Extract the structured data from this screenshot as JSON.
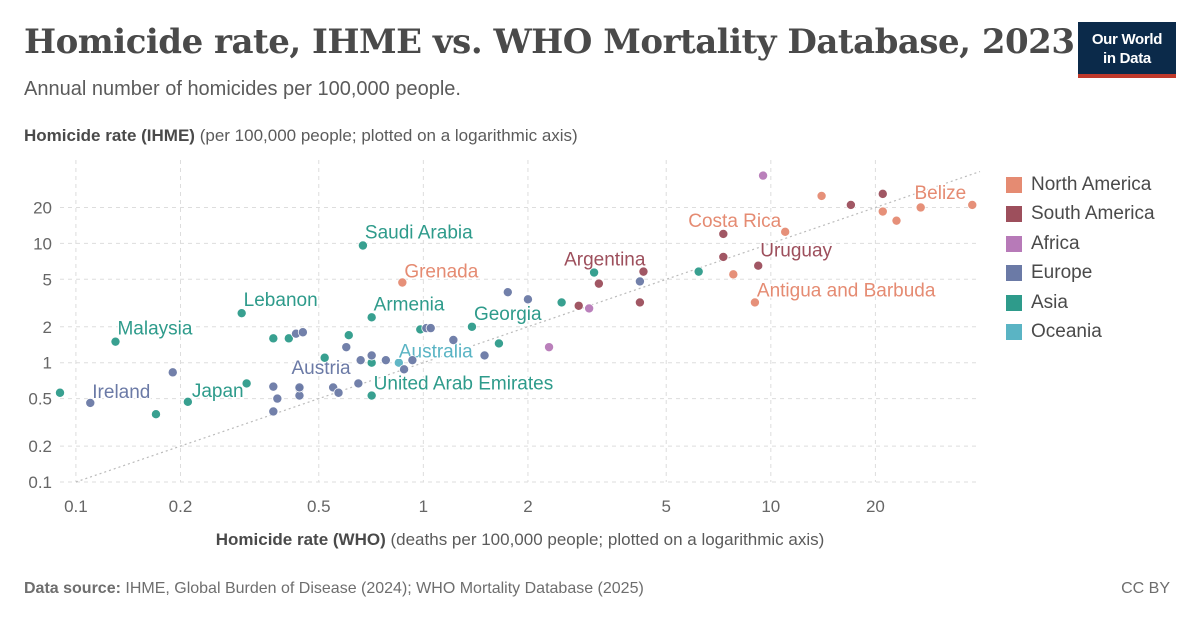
{
  "header": {
    "title": "Homicide rate, IHME vs. WHO Mortality Database, 2023",
    "subtitle": "Annual number of homicides per 100,000 people.",
    "logo_line1": "Our World",
    "logo_line2": "in Data"
  },
  "axes": {
    "y_label_bold": "Homicide rate (IHME)",
    "y_label_rest": " (per 100,000 people; plotted on a logarithmic axis)",
    "x_label_bold": "Homicide rate (WHO)",
    "x_label_rest": " (deaths per 100,000 people; plotted on a logarithmic axis)"
  },
  "footer": {
    "source_label": "Data source:",
    "source_text": " IHME, Global Burden of Disease (2024); WHO Mortality Database (2025)",
    "license": "CC BY"
  },
  "colors": {
    "North America": "#e58b72",
    "South America": "#9d4f5c",
    "Africa": "#b77ab8",
    "Europe": "#6b7aa6",
    "Asia": "#2e9b8b",
    "Oceania": "#5ab4c4",
    "grid": "#dddddd",
    "diagonal": "#bbbbbb"
  },
  "chart_data": {
    "type": "scatter",
    "x_scale": "log",
    "y_scale": "log",
    "xlim": [
      0.09,
      40
    ],
    "ylim": [
      0.1,
      50
    ],
    "x_ticks": [
      {
        "v": 0.1,
        "label": "0.1"
      },
      {
        "v": 0.2,
        "label": "0.2"
      },
      {
        "v": 0.5,
        "label": "0.5"
      },
      {
        "v": 1,
        "label": "1"
      },
      {
        "v": 2,
        "label": "2"
      },
      {
        "v": 5,
        "label": "5"
      },
      {
        "v": 10,
        "label": "10"
      },
      {
        "v": 20,
        "label": "20"
      }
    ],
    "y_ticks": [
      {
        "v": 0.1,
        "label": "0.1"
      },
      {
        "v": 0.2,
        "label": "0.2"
      },
      {
        "v": 0.5,
        "label": "0.5"
      },
      {
        "v": 1,
        "label": "1"
      },
      {
        "v": 2,
        "label": "2"
      },
      {
        "v": 5,
        "label": "5"
      },
      {
        "v": 10,
        "label": "10"
      },
      {
        "v": 20,
        "label": "20"
      }
    ],
    "reference_line": "y = x",
    "grid": true,
    "legend_position": "right",
    "legend": [
      "North America",
      "South America",
      "Africa",
      "Europe",
      "Asia",
      "Oceania"
    ],
    "points": [
      {
        "x": 38,
        "y": 21,
        "region": "North America",
        "label": "Belize"
      },
      {
        "x": 11,
        "y": 12.5,
        "region": "North America",
        "label": "Costa Rica"
      },
      {
        "x": 9.2,
        "y": 6.5,
        "region": "South America",
        "label": "Uruguay"
      },
      {
        "x": 4.3,
        "y": 5.8,
        "region": "South America",
        "label": "Argentina"
      },
      {
        "x": 9,
        "y": 3.2,
        "region": "North America",
        "label": "Antigua and Barbuda"
      },
      {
        "x": 0.87,
        "y": 4.7,
        "region": "North America",
        "label": "Grenada"
      },
      {
        "x": 0.67,
        "y": 9.6,
        "region": "Asia",
        "label": "Saudi Arabia"
      },
      {
        "x": 0.3,
        "y": 2.6,
        "region": "Asia",
        "label": "Lebanon"
      },
      {
        "x": 0.71,
        "y": 2.4,
        "region": "Asia",
        "label": "Armenia"
      },
      {
        "x": 1.38,
        "y": 2.0,
        "region": "Asia",
        "label": "Georgia"
      },
      {
        "x": 0.13,
        "y": 1.5,
        "region": "Asia",
        "label": "Malaysia"
      },
      {
        "x": 0.85,
        "y": 1.0,
        "region": "Oceania",
        "label": "Australia"
      },
      {
        "x": 0.71,
        "y": 0.53,
        "region": "Asia",
        "label": "United Arab Emirates"
      },
      {
        "x": 0.44,
        "y": 0.6,
        "region": "Europe",
        "label": "Austria"
      },
      {
        "x": 0.11,
        "y": 0.46,
        "region": "Europe",
        "label": "Ireland"
      },
      {
        "x": 0.21,
        "y": 0.47,
        "region": "Asia",
        "label": "Japan"
      },
      {
        "x": 0.09,
        "y": 0.56,
        "region": "Asia"
      },
      {
        "x": 0.17,
        "y": 0.37,
        "region": "Asia"
      },
      {
        "x": 0.19,
        "y": 0.83,
        "region": "Europe"
      },
      {
        "x": 0.31,
        "y": 0.67,
        "region": "Asia"
      },
      {
        "x": 0.37,
        "y": 0.63,
        "region": "Europe"
      },
      {
        "x": 0.38,
        "y": 0.5,
        "region": "Europe"
      },
      {
        "x": 0.37,
        "y": 0.39,
        "region": "Europe"
      },
      {
        "x": 0.44,
        "y": 0.53,
        "region": "Europe"
      },
      {
        "x": 0.44,
        "y": 0.62,
        "region": "Europe"
      },
      {
        "x": 0.37,
        "y": 1.6,
        "region": "Asia"
      },
      {
        "x": 0.41,
        "y": 1.6,
        "region": "Asia"
      },
      {
        "x": 0.43,
        "y": 1.75,
        "region": "Europe"
      },
      {
        "x": 0.45,
        "y": 1.8,
        "region": "Europe"
      },
      {
        "x": 0.52,
        "y": 1.1,
        "region": "Asia"
      },
      {
        "x": 0.55,
        "y": 0.62,
        "region": "Europe"
      },
      {
        "x": 0.57,
        "y": 0.56,
        "region": "Europe"
      },
      {
        "x": 0.6,
        "y": 1.35,
        "region": "Europe"
      },
      {
        "x": 0.61,
        "y": 1.7,
        "region": "Asia"
      },
      {
        "x": 0.65,
        "y": 0.67,
        "region": "Europe"
      },
      {
        "x": 0.66,
        "y": 1.05,
        "region": "Europe"
      },
      {
        "x": 0.71,
        "y": 1.0,
        "region": "Asia"
      },
      {
        "x": 0.71,
        "y": 1.15,
        "region": "Europe"
      },
      {
        "x": 0.78,
        "y": 1.05,
        "region": "Europe"
      },
      {
        "x": 0.88,
        "y": 0.88,
        "region": "Europe"
      },
      {
        "x": 0.93,
        "y": 1.05,
        "region": "Europe"
      },
      {
        "x": 0.98,
        "y": 1.9,
        "region": "Asia"
      },
      {
        "x": 1.02,
        "y": 1.95,
        "region": "Europe"
      },
      {
        "x": 1.05,
        "y": 1.95,
        "region": "Europe"
      },
      {
        "x": 1.22,
        "y": 1.55,
        "region": "Europe"
      },
      {
        "x": 1.5,
        "y": 1.15,
        "region": "Europe"
      },
      {
        "x": 1.65,
        "y": 1.45,
        "region": "Asia"
      },
      {
        "x": 1.75,
        "y": 3.9,
        "region": "Europe"
      },
      {
        "x": 2.0,
        "y": 3.4,
        "region": "Europe"
      },
      {
        "x": 2.3,
        "y": 1.35,
        "region": "Africa"
      },
      {
        "x": 2.5,
        "y": 3.2,
        "region": "Asia"
      },
      {
        "x": 2.8,
        "y": 3.0,
        "region": "South America"
      },
      {
        "x": 3.0,
        "y": 2.85,
        "region": "Africa"
      },
      {
        "x": 3.1,
        "y": 5.7,
        "region": "Asia"
      },
      {
        "x": 3.2,
        "y": 4.6,
        "region": "South America"
      },
      {
        "x": 4.2,
        "y": 3.2,
        "region": "South America"
      },
      {
        "x": 4.2,
        "y": 4.8,
        "region": "Europe"
      },
      {
        "x": 6.2,
        "y": 5.8,
        "region": "Asia"
      },
      {
        "x": 7.3,
        "y": 12,
        "region": "South America"
      },
      {
        "x": 7.3,
        "y": 7.7,
        "region": "South America"
      },
      {
        "x": 7.8,
        "y": 5.5,
        "region": "North America"
      },
      {
        "x": 9.5,
        "y": 37,
        "region": "Africa"
      },
      {
        "x": 14,
        "y": 25,
        "region": "North America"
      },
      {
        "x": 17,
        "y": 21,
        "region": "South America"
      },
      {
        "x": 21,
        "y": 26,
        "region": "South America"
      },
      {
        "x": 21,
        "y": 18.5,
        "region": "North America"
      },
      {
        "x": 23,
        "y": 15.5,
        "region": "North America"
      },
      {
        "x": 27,
        "y": 20,
        "region": "North America"
      }
    ]
  }
}
